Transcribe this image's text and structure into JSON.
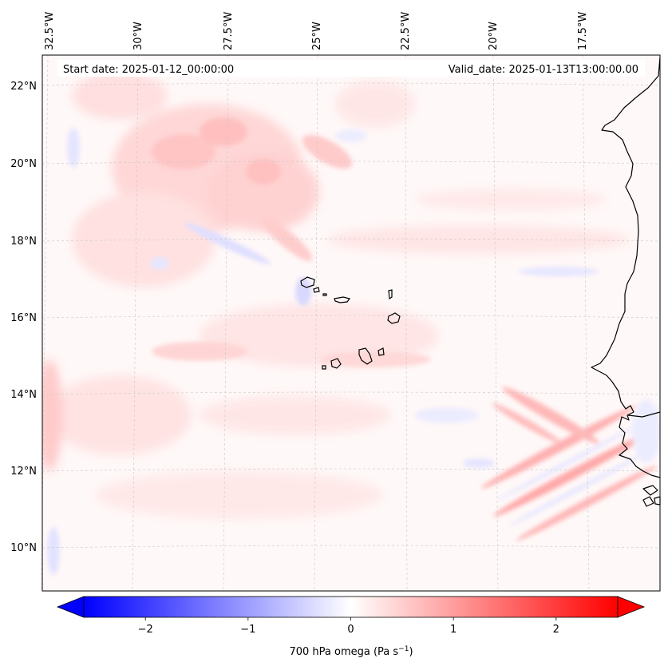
{
  "map": {
    "start_label": "Start date: 2025-01-12_00:00:00",
    "valid_label": "Valid_date: 2025-01-13T13:00:00.00",
    "lon_labels": [
      "32.5°W",
      "30°W",
      "27.5°W",
      "25°W",
      "22.5°W",
      "20°W",
      "17.5°W"
    ],
    "lat_labels": [
      "22°N",
      "20°N",
      "18°N",
      "16°N",
      "14°N",
      "12°N",
      "10°N"
    ],
    "coastline_color": "#000000",
    "gridline_color": "#bbbbbb",
    "features": [
      "Cape Verde islands",
      "West African coastline"
    ]
  },
  "colorbar": {
    "label_text": "700 hPa omega (Pa s",
    "label_superscript": "−1",
    "label_suffix": ")",
    "ticks": [
      "−2",
      "−1",
      "0",
      "1",
      "2"
    ],
    "tick_values": [
      -2,
      -1,
      0,
      1,
      2
    ],
    "range": [
      -2.6,
      2.6
    ],
    "colormap": "bwr",
    "extend": "both",
    "min_color": "#0000ff",
    "mid_color": "#ffffff",
    "max_color": "#ff0000"
  }
}
